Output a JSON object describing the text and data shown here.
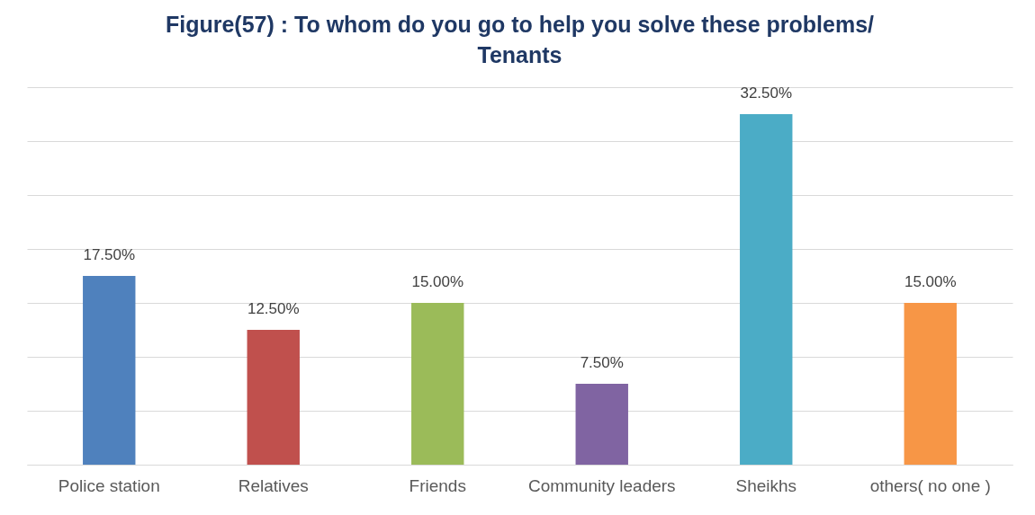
{
  "chart_data": {
    "type": "bar",
    "title": "Figure(57) : To whom do you go to help you solve these problems/ Tenants",
    "categories": [
      "Police station",
      "Relatives",
      "Friends",
      "Community leaders",
      "Sheikhs",
      "others( no one )"
    ],
    "values": [
      17.5,
      12.5,
      15,
      7.5,
      32.5,
      15
    ],
    "value_labels": [
      "17.50%",
      "12.50%",
      "15.00%",
      "7.50%",
      "32.50%",
      "15.00%"
    ],
    "colors": [
      "#4f81bd",
      "#c0504d",
      "#9bbb59",
      "#8064a2",
      "#4bacc6",
      "#f79646"
    ],
    "ylim": [
      0,
      35
    ],
    "yticks": [
      {
        "value": 0,
        "label": null
      },
      {
        "value": 5,
        "label": null
      },
      {
        "value": 10,
        "label": null
      },
      {
        "value": 15,
        "label": null
      },
      {
        "value": 20,
        "label": null
      },
      {
        "value": 25,
        "label": null
      },
      {
        "value": 30,
        "label": null
      },
      {
        "value": 35,
        "label": null
      }
    ],
    "grid": "y",
    "tick_labels": "x"
  }
}
